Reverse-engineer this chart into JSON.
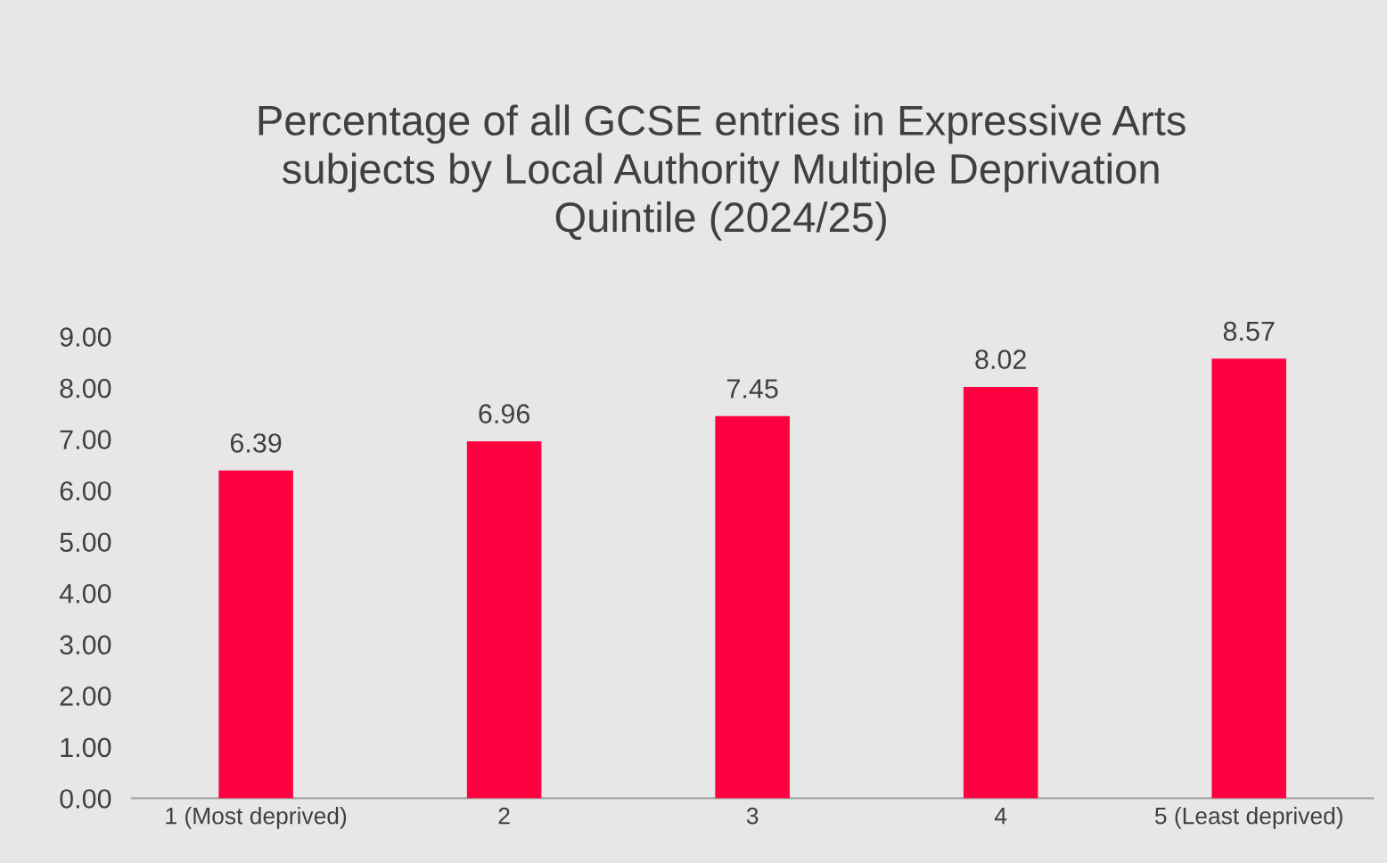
{
  "chart_data": {
    "type": "bar",
    "title": "Percentage of all GCSE entries in Expressive Arts\nsubjects by Local Authority Multiple Deprivation\nQuintile (2024/25)",
    "categories": [
      "1 (Most deprived)",
      "2",
      "3",
      "4",
      "5 (Least deprived)"
    ],
    "values": [
      6.39,
      6.96,
      7.45,
      8.02,
      8.57
    ],
    "color": "#ff0040",
    "ylim": [
      0,
      9
    ],
    "yticks": [
      {
        "value": 0,
        "label": "0.00"
      },
      {
        "value": 1,
        "label": "1.00"
      },
      {
        "value": 2,
        "label": "2.00"
      },
      {
        "value": 3,
        "label": "3.00"
      },
      {
        "value": 4,
        "label": "4.00"
      },
      {
        "value": 5,
        "label": "5.00"
      },
      {
        "value": 6,
        "label": "6.00"
      },
      {
        "value": 7,
        "label": "7.00"
      },
      {
        "value": 8,
        "label": "8.00"
      },
      {
        "value": 9,
        "label": "9.00"
      }
    ],
    "grid": false,
    "data_labels": true
  }
}
